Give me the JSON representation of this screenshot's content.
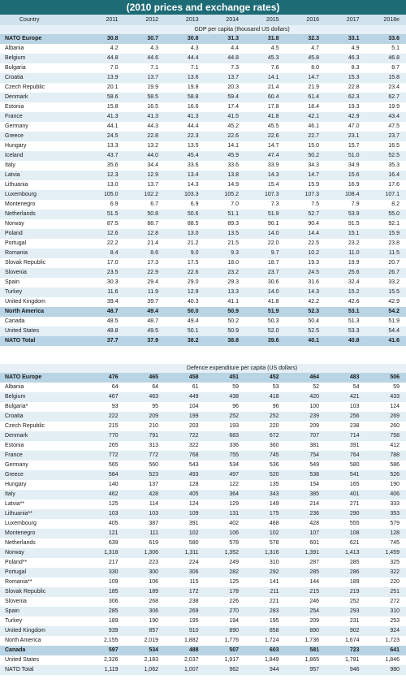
{
  "header": {
    "title": "(2010 prices and exchange rates)"
  },
  "columns": [
    "Country",
    "2011",
    "2012",
    "2013",
    "2014",
    "2015",
    "2016",
    "2017",
    "2018e"
  ],
  "sections": [
    {
      "title": "GDP per capita (thousand US dollars)",
      "rows": [
        [
          "NATO Europe",
          "30.8",
          "30.7",
          "30.8",
          "31.3",
          "31.8",
          "32.3",
          "33.1",
          "33.6"
        ],
        [
          "Albania",
          "4.2",
          "4.3",
          "4.3",
          "4.4",
          "4.5",
          "4.7",
          "4.9",
          "5.1"
        ],
        [
          "Belgium",
          "44.8",
          "44.6",
          "44.4",
          "44.8",
          "45.3",
          "45.8",
          "46.3",
          "46.8"
        ],
        [
          "Bulgaria",
          "7.0",
          "7.1",
          "7.1",
          "7.3",
          "7.6",
          "8.0",
          "8.3",
          "8.7"
        ],
        [
          "Croatia",
          "13.9",
          "13.7",
          "13.6",
          "13.7",
          "14.1",
          "14.7",
          "15.3",
          "15.8"
        ],
        [
          "Czech Republic",
          "20.1",
          "19.9",
          "19.8",
          "20.3",
          "21.4",
          "21.9",
          "22.8",
          "23.4"
        ],
        [
          "Denmark",
          "58.6",
          "58.5",
          "58.8",
          "59.4",
          "60.4",
          "61.4",
          "62.3",
          "62.7"
        ],
        [
          "Estonia",
          "15.8",
          "16.5",
          "16.6",
          "17.4",
          "17.8",
          "18.4",
          "19.3",
          "19.9"
        ],
        [
          "France",
          "41.3",
          "41.3",
          "41.3",
          "41.5",
          "41.8",
          "42.1",
          "42.9",
          "43.4"
        ],
        [
          "Germany",
          "44.1",
          "44.3",
          "44.4",
          "45.2",
          "45.5",
          "46.1",
          "47.0",
          "47.5"
        ],
        [
          "Greece",
          "24.5",
          "22.8",
          "22.3",
          "22.6",
          "22.6",
          "22.7",
          "23.1",
          "23.7"
        ],
        [
          "Hungary",
          "13.3",
          "13.2",
          "13.5",
          "14.1",
          "14.7",
          "15.0",
          "15.7",
          "16.5"
        ],
        [
          "Iceland",
          "43.7",
          "44.0",
          "45.4",
          "45.9",
          "47.4",
          "50.2",
          "51.0",
          "52.5"
        ],
        [
          "Italy",
          "35.6",
          "34.4",
          "33.6",
          "33.6",
          "33.9",
          "34.3",
          "34.9",
          "35.3"
        ],
        [
          "Latvia",
          "12.3",
          "12.9",
          "13.4",
          "13.8",
          "14.3",
          "14.7",
          "15.6",
          "16.4"
        ],
        [
          "Lithuania",
          "13.0",
          "13.7",
          "14.3",
          "14.9",
          "15.4",
          "15.9",
          "16.9",
          "17.6"
        ],
        [
          "Luxembourg",
          "105.0",
          "102.2",
          "103.3",
          "105.2",
          "107.3",
          "107.3",
          "108.4",
          "107.1"
        ],
        [
          "Montenegro",
          "6.9",
          "6.7",
          "6.9",
          "7.0",
          "7.3",
          "7.5",
          "7.9",
          "8.2"
        ],
        [
          "Netherlands",
          "51.5",
          "50.8",
          "50.6",
          "51.1",
          "51.9",
          "52.7",
          "53.9",
          "55.0"
        ],
        [
          "Norway",
          "87.5",
          "88.7",
          "88.5",
          "89.3",
          "90.1",
          "90.4",
          "91.5",
          "92.1"
        ],
        [
          "Poland",
          "12.6",
          "12.8",
          "13.0",
          "13.5",
          "14.0",
          "14.4",
          "15.1",
          "15.9"
        ],
        [
          "Portugal",
          "22.2",
          "21.4",
          "21.2",
          "21.5",
          "22.0",
          "22.5",
          "23.2",
          "23.8"
        ],
        [
          "Romania",
          "8.4",
          "8.6",
          "9.0",
          "9.3",
          "9.7",
          "10.2",
          "11.0",
          "11.5"
        ],
        [
          "Slovak Republic",
          "17.0",
          "17.3",
          "17.5",
          "18.0",
          "18.7",
          "19.3",
          "19.9",
          "20.7"
        ],
        [
          "Slovenia",
          "23.5",
          "22.9",
          "22.6",
          "23.2",
          "23.7",
          "24.5",
          "25.6",
          "26.7"
        ],
        [
          "Spain",
          "30.3",
          "29.4",
          "29.0",
          "29.3",
          "30.6",
          "31.6",
          "32.4",
          "33.2"
        ],
        [
          "Turkey",
          "11.6",
          "11.9",
          "12.9",
          "13.3",
          "14.0",
          "14.3",
          "15.2",
          "15.5"
        ],
        [
          "United Kingdom",
          "39.4",
          "39.7",
          "40.3",
          "41.1",
          "41.8",
          "42.2",
          "42.6",
          "42.9"
        ],
        [
          "North America",
          "48.7",
          "49.4",
          "50.0",
          "50.9",
          "51.9",
          "52.3",
          "53.1",
          "54.2"
        ],
        [
          "Canada",
          "48.5",
          "48.7",
          "49.4",
          "50.2",
          "50.3",
          "50.4",
          "51.3",
          "51.9"
        ],
        [
          "United States",
          "48.8",
          "49.5",
          "50.1",
          "50.9",
          "52.0",
          "52.5",
          "53.3",
          "54.4"
        ],
        [
          "NATO Total",
          "37.7",
          "37.9",
          "38.2",
          "38.8",
          "39.6",
          "40.1",
          "40.8",
          "41.6"
        ]
      ]
    },
    {
      "title": "Defence expenditure per capita (US dollars)",
      "rows": [
        [
          "NATO Europe",
          "476",
          "465",
          "458",
          "451",
          "452",
          "464",
          "483",
          "506"
        ],
        [
          "Albania",
          "64",
          "64",
          "61",
          "59",
          "53",
          "52",
          "54",
          "59"
        ],
        [
          "Belgium",
          "467",
          "463",
          "449",
          "438",
          "418",
          "420",
          "421",
          "433"
        ],
        [
          "Bulgaria*",
          "93",
          "95",
          "104",
          "96",
          "96",
          "100",
          "103",
          "124"
        ],
        [
          "Croatia",
          "222",
          "209",
          "199",
          "252",
          "252",
          "239",
          "256",
          "269"
        ],
        [
          "Czech Republic",
          "215",
          "210",
          "203",
          "193",
          "220",
          "209",
          "238",
          "260"
        ],
        [
          "Denmark",
          "770",
          "791",
          "722",
          "683",
          "672",
          "707",
          "714",
          "758"
        ],
        [
          "Estonia",
          "265",
          "313",
          "322",
          "336",
          "360",
          "381",
          "391",
          "412"
        ],
        [
          "France",
          "772",
          "772",
          "768",
          "755",
          "745",
          "754",
          "764",
          "788"
        ],
        [
          "Germany",
          "565",
          "560",
          "543",
          "534",
          "536",
          "549",
          "580",
          "586"
        ],
        [
          "Greece",
          "584",
          "523",
          "493",
          "497",
          "520",
          "538",
          "541",
          "526"
        ],
        [
          "Hungary",
          "140",
          "137",
          "128",
          "122",
          "135",
          "154",
          "165",
          "190"
        ],
        [
          "Italy",
          "462",
          "428",
          "405",
          "364",
          "343",
          "385",
          "401",
          "406"
        ],
        [
          "Latvia**",
          "125",
          "114",
          "124",
          "129",
          "149",
          "214",
          "271",
          "333"
        ],
        [
          "Lithuania**",
          "103",
          "103",
          "109",
          "131",
          "175",
          "236",
          "290",
          "353"
        ],
        [
          "Luxembourg",
          "405",
          "387",
          "391",
          "402",
          "468",
          "428",
          "555",
          "579"
        ],
        [
          "Montenegro",
          "121",
          "111",
          "102",
          "106",
          "102",
          "107",
          "108",
          "128"
        ],
        [
          "Netherlands",
          "639",
          "619",
          "580",
          "578",
          "578",
          "601",
          "621",
          "745"
        ],
        [
          "Norway",
          "1,318",
          "1,306",
          "1,311",
          "1,352",
          "1,316",
          "1,391",
          "1,413",
          "1,459"
        ],
        [
          "Poland**",
          "217",
          "223",
          "224",
          "249",
          "310",
          "287",
          "285",
          "325"
        ],
        [
          "Portugal",
          "330",
          "300",
          "306",
          "282",
          "292",
          "285",
          "286",
          "322"
        ],
        [
          "Romania**",
          "109",
          "106",
          "115",
          "125",
          "141",
          "144",
          "189",
          "220"
        ],
        [
          "Slovak Republic",
          "185",
          "189",
          "172",
          "178",
          "211",
          "215",
          "219",
          "251"
        ],
        [
          "Slovenia",
          "306",
          "268",
          "238",
          "226",
          "221",
          "246",
          "252",
          "272"
        ],
        [
          "Spain",
          "285",
          "306",
          "269",
          "270",
          "283",
          "254",
          "293",
          "310"
        ],
        [
          "Turkey",
          "189",
          "190",
          "195",
          "194",
          "195",
          "209",
          "231",
          "253"
        ],
        [
          "United Kingdom",
          "939",
          "857",
          "910",
          "890",
          "858",
          "890",
          "902",
          "924"
        ],
        [
          "North America",
          "2,155",
          "2,019",
          "1,882",
          "1,776",
          "1,724",
          "1,736",
          "1,674",
          "1,723"
        ],
        [
          "Canada",
          "597",
          "534",
          "488",
          "507",
          "603",
          "581",
          "723",
          "641"
        ],
        [
          "United States",
          "2,326",
          "2,183",
          "2,037",
          "1,917",
          "1,849",
          "1,865",
          "1,781",
          "1,846"
        ],
        [
          "NATO Total",
          "1,119",
          "1,062",
          "1,007",
          "962",
          "944",
          "957",
          "946",
          "980"
        ]
      ]
    }
  ]
}
